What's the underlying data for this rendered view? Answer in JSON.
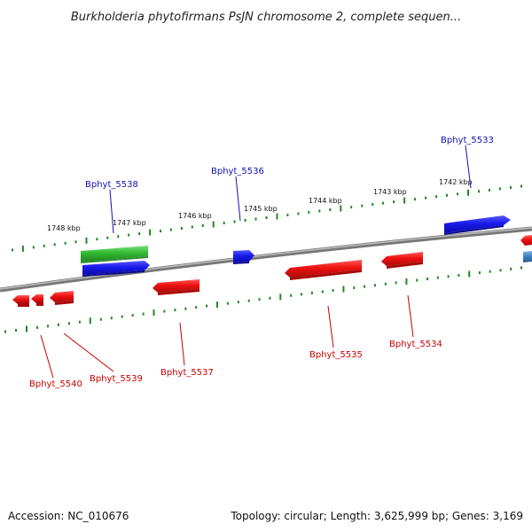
{
  "title": "Burkholderia phytofirmans PsJN chromosome 2, complete sequen...",
  "footer": {
    "accession": "Accession: NC_010676",
    "topology": "Topology: circular; Length: 3,625,999 bp; Genes: 3,169"
  },
  "scale_labels": [
    "1748 kbp",
    "1747 kbp",
    "1746 kbp",
    "1745 kbp",
    "1744 kbp",
    "1743 kbp",
    "1742 kbp"
  ],
  "gene_labels": {
    "top": [
      "Bphyt_5538",
      "Bphyt_5536",
      "Bphyt_5533"
    ],
    "bottom": [
      "Bphyt_5540",
      "Bphyt_5539",
      "Bphyt_5537",
      "Bphyt_5535",
      "Bphyt_5534"
    ]
  },
  "colors": {
    "forward_gene": "#1a1aee",
    "reverse_gene": "#ee1111",
    "rna_gene": "#33bb33",
    "other_gene": "#3a7fc0",
    "backbone": "#888888",
    "tick": "#1f8a1f",
    "top_label": "#1010b0",
    "bottom_label": "#c80000"
  }
}
